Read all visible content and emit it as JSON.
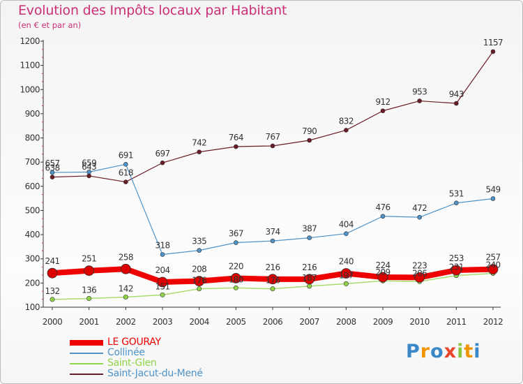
{
  "title": "Evolution des Impôts locaux par Habitant",
  "subtitle": "(en € et par an)",
  "logo": {
    "letters": [
      "P",
      "r",
      "o",
      "x",
      "i",
      "t",
      "i"
    ],
    "colors": [
      "#3a88c8",
      "#f29400",
      "#3a88c8",
      "#e8452c",
      "#8cc63f",
      "#f29400",
      "#3a88c8"
    ]
  },
  "chart_data": {
    "type": "line",
    "title": "Evolution des Impôts locaux par Habitant",
    "subtitle": "(en € et par an)",
    "x": [
      "2000",
      "2001",
      "2002",
      "2003",
      "2004",
      "2005",
      "2006",
      "2007",
      "2008",
      "2009",
      "2010",
      "2011",
      "2012"
    ],
    "ylim": [
      100,
      1200
    ],
    "yticks": [
      100,
      200,
      300,
      400,
      500,
      600,
      700,
      800,
      900,
      1000,
      1100,
      1200
    ],
    "grid": false,
    "legend_position": "bottom-left",
    "series": [
      {
        "name": "Saint-Jacut-du-Mené",
        "color": "#6b1c26",
        "values": [
          638,
          643,
          618,
          697,
          742,
          764,
          767,
          790,
          832,
          912,
          953,
          943,
          1157
        ]
      },
      {
        "name": "Collinée",
        "color": "#4f93c8",
        "values": [
          657,
          659,
          691,
          318,
          335,
          367,
          374,
          387,
          404,
          476,
          472,
          531,
          549
        ]
      },
      {
        "name": "Saint-Glen",
        "color": "#8fd44a",
        "values": [
          132,
          136,
          142,
          151,
          176,
          180,
          176,
          187,
          197,
          209,
          206,
          231,
          240
        ]
      },
      {
        "name": "LE GOURAY",
        "color": "#ee0000",
        "values": [
          241,
          251,
          258,
          204,
          208,
          220,
          216,
          216,
          240,
          224,
          223,
          253,
          257
        ]
      }
    ],
    "legend_order": [
      "LE GOURAY",
      "Collinée",
      "Saint-Glen",
      "Saint-Jacut-du-Mené"
    ]
  }
}
